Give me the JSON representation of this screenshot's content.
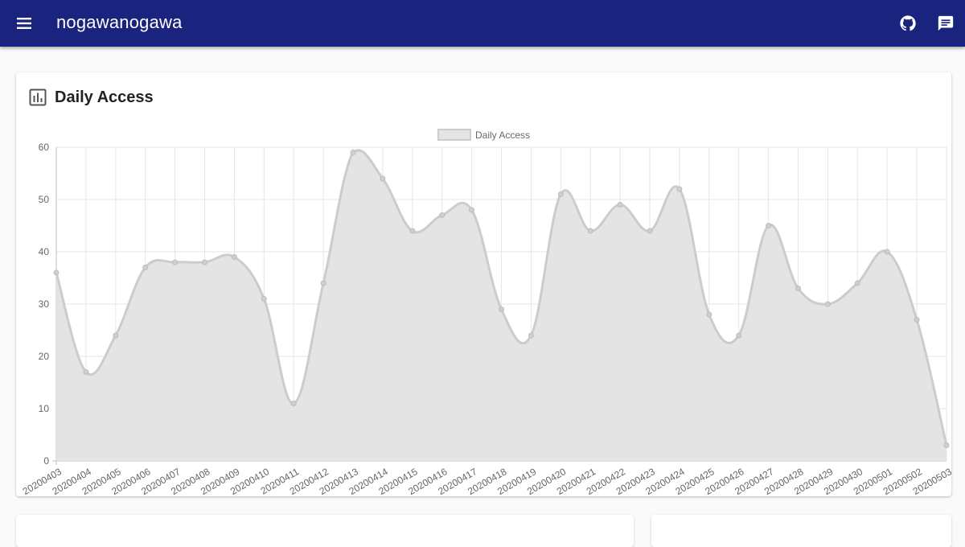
{
  "appbar": {
    "title": "nogawanogawa",
    "icons": [
      "menu-icon",
      "github-icon",
      "feedback-icon"
    ],
    "color": "#1a237e"
  },
  "card": {
    "title": "Daily Access",
    "icon": "bar-chart-icon"
  },
  "chart_data": {
    "type": "area",
    "title": "",
    "xlabel": "",
    "ylabel": "",
    "legend": {
      "label": "Daily Access",
      "position": "top"
    },
    "ylim": [
      0,
      60
    ],
    "yticks": [
      0,
      10,
      20,
      30,
      40,
      50,
      60
    ],
    "grid": true,
    "fill_color": "#e4e4e4",
    "line_color": "#cccccc",
    "categories": [
      "20200403",
      "20200404",
      "20200405",
      "20200406",
      "20200407",
      "20200408",
      "20200409",
      "20200410",
      "20200411",
      "20200412",
      "20200413",
      "20200414",
      "20200415",
      "20200416",
      "20200417",
      "20200418",
      "20200419",
      "20200420",
      "20200421",
      "20200422",
      "20200423",
      "20200424",
      "20200425",
      "20200426",
      "20200427",
      "20200428",
      "20200429",
      "20200430",
      "20200501",
      "20200502",
      "20200503"
    ],
    "series": [
      {
        "name": "Daily Access",
        "values": [
          36,
          17,
          24,
          37,
          38,
          38,
          39,
          31,
          11,
          34,
          59,
          54,
          44,
          47,
          48,
          29,
          24,
          51,
          44,
          49,
          44,
          52,
          28,
          24,
          45,
          33,
          30,
          34,
          40,
          27,
          3
        ]
      }
    ]
  }
}
